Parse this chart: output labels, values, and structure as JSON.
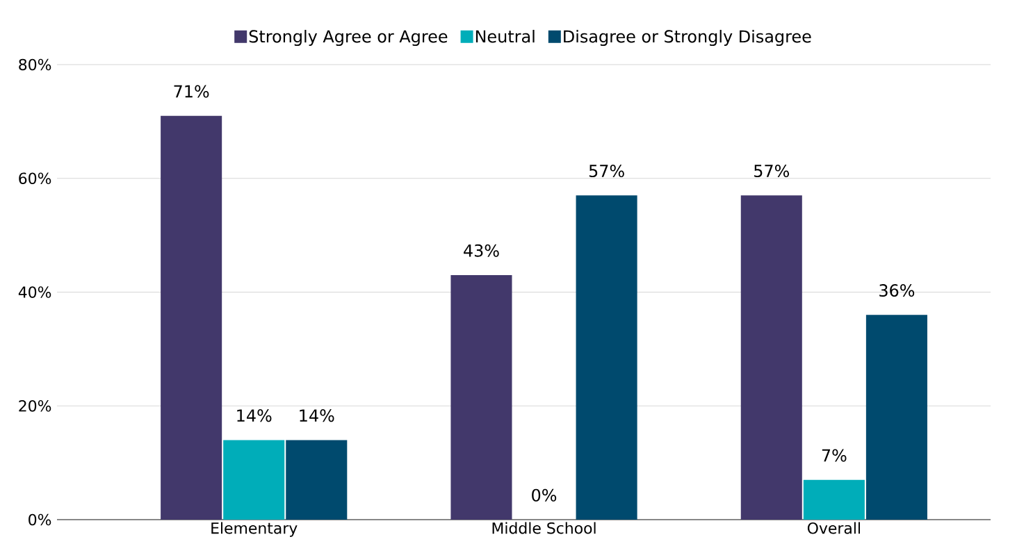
{
  "chart_data": {
    "type": "bar",
    "categories": [
      "Elementary",
      "Middle School",
      "Overall"
    ],
    "series": [
      {
        "name": "Strongly Agree or Agree",
        "color": "#42386b",
        "values": [
          71,
          43,
          57
        ],
        "value_labels": [
          "71%",
          "43%",
          "57%"
        ]
      },
      {
        "name": "Neutral",
        "color": "#00adb9",
        "values": [
          14,
          0,
          7
        ],
        "value_labels": [
          "14%",
          "0%",
          "7%"
        ]
      },
      {
        "name": "Disagree or Strongly Disagree",
        "color": "#004a6e",
        "values": [
          14,
          57,
          36
        ],
        "value_labels": [
          "14%",
          "57%",
          "36%"
        ]
      }
    ],
    "ylim": [
      0,
      80
    ],
    "yticks": [
      {
        "value": 0,
        "label": "0%"
      },
      {
        "value": 20,
        "label": "20%"
      },
      {
        "value": 40,
        "label": "40%"
      },
      {
        "value": 60,
        "label": "60%"
      },
      {
        "value": 80,
        "label": "80%"
      }
    ],
    "grid": "y",
    "legend": "top"
  }
}
